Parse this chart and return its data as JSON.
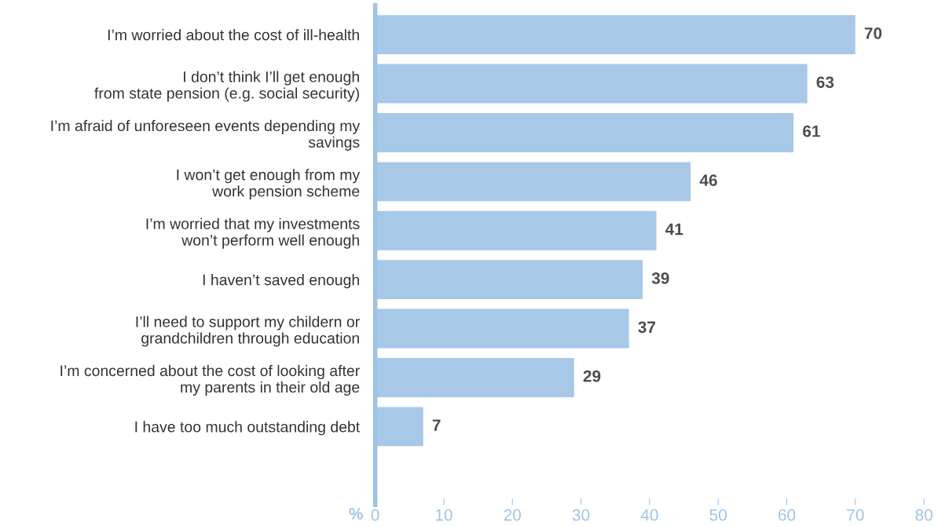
{
  "chart_data": {
    "type": "bar",
    "orientation": "horizontal",
    "xlabel": "%",
    "categories": [
      "I’m worried about the cost of ill-health",
      "I don’t think I’ll get enough\nfrom state pension (e.g. social security)",
      "I’m afraid of unforeseen events depending my\nsavings",
      "I won’t get enough from my\nwork pension scheme",
      "I’m worried that my investments\nwon’t perform well enough",
      "I haven’t saved enough",
      "I’ll need to support my childern or\ngrandchildren through education",
      "I’m concerned about the cost of looking after\nmy parents in their old age",
      "I have too much outstanding debt"
    ],
    "values": [
      70,
      63,
      61,
      46,
      41,
      39,
      37,
      29,
      7
    ],
    "color": "#a8c8e8",
    "data_labels": true,
    "xlim": [
      0,
      80
    ],
    "xticks": [
      0,
      10,
      20,
      30,
      40,
      50,
      60,
      70,
      80
    ],
    "grid": false,
    "legend": false
  }
}
